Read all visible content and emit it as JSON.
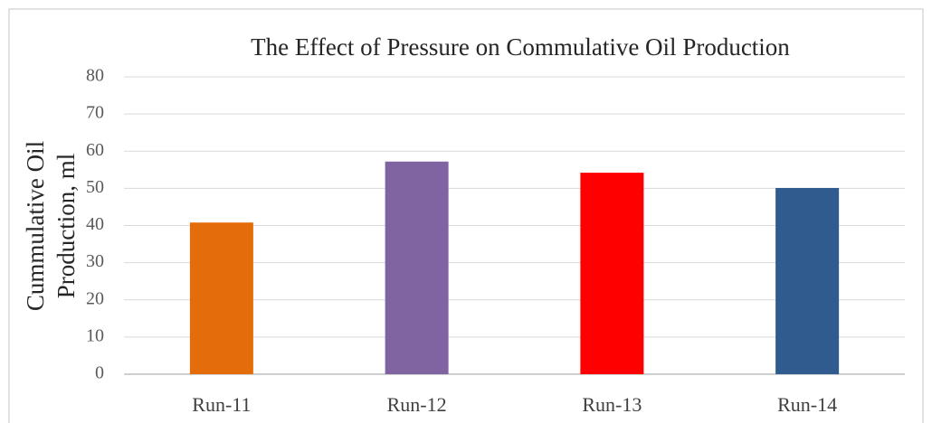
{
  "chart_data": {
    "type": "bar",
    "title": "The Effect of Pressure on Commulative Oil Production",
    "y_label": [
      "Cummulative Oil",
      "Production, ml"
    ],
    "categories": [
      "Run-11",
      "Run-12",
      "Run-13",
      "Run-14"
    ],
    "values": [
      40.8,
      57.2,
      54.2,
      50.1
    ],
    "colors": [
      "#e46c0a",
      "#8064a2",
      "#ff0000",
      "#2f5b8e"
    ],
    "ylim": [
      0,
      80
    ],
    "yticks": [
      0,
      10,
      20,
      30,
      40,
      50,
      60,
      70,
      80
    ],
    "grid": true
  }
}
